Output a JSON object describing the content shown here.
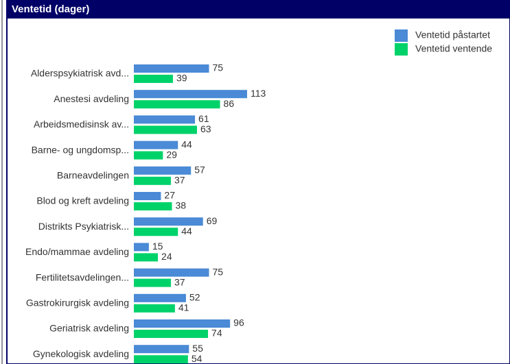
{
  "chart_data": {
    "type": "bar",
    "orientation": "horizontal",
    "title": "Ventetid (dager)",
    "categories": [
      "Alderspsykiatrisk avd...",
      "Anestesi avdeling",
      "Arbeidsmedisinsk av...",
      "Barne- og ungdomsp...",
      "Barneavdelingen",
      "Blod og kreft avdeling",
      "Distrikts Psykiatrisk...",
      "Endo/mammae avdeling",
      "Fertilitetsavdelingen...",
      "Gastrokirurgisk avdeling",
      "Geriatrisk avdeling",
      "Gynekologisk avdeling"
    ],
    "series": [
      {
        "name": "Ventetid påstartet",
        "color": "#4a8ad6",
        "values": [
          75,
          113,
          61,
          44,
          57,
          27,
          69,
          15,
          75,
          52,
          96,
          55
        ]
      },
      {
        "name": "Ventetid ventende",
        "color": "#00d26a",
        "values": [
          39,
          86,
          63,
          29,
          37,
          38,
          44,
          24,
          37,
          41,
          74,
          54
        ]
      }
    ]
  }
}
